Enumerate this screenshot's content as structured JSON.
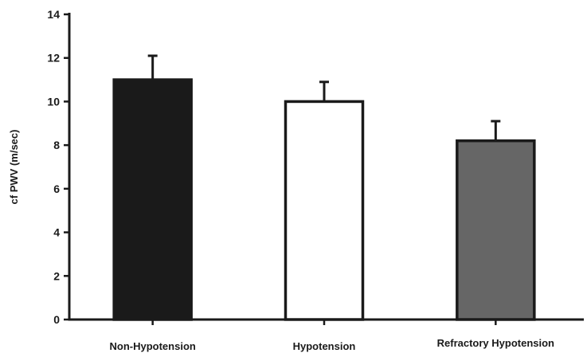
{
  "chart_data": {
    "type": "bar",
    "title": "",
    "xlabel": "",
    "ylabel": "cf PWV (m/sec)",
    "ylim": [
      0,
      14
    ],
    "yticks": [
      "0",
      "2",
      "4",
      "6",
      "8",
      "10",
      "12",
      "14"
    ],
    "categories": [
      "Non-Hypotension",
      "Hypotension",
      "Refractory Hypotension"
    ],
    "values": [
      11.0,
      10.0,
      8.2
    ],
    "errors": [
      1.1,
      0.9,
      0.9
    ],
    "colors": [
      "#1a1a1a",
      "#ffffff",
      "#666666"
    ],
    "grid": false
  }
}
